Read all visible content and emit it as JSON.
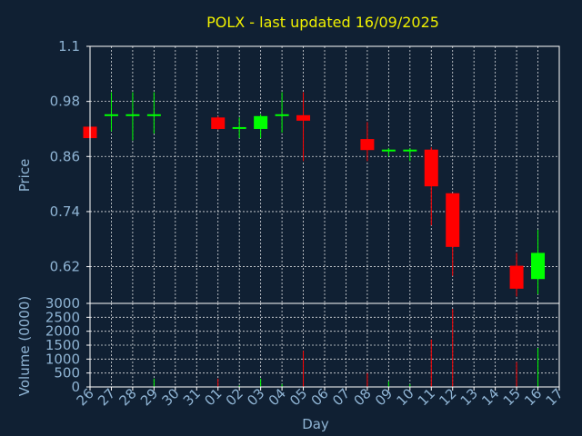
{
  "chart_data": {
    "type": "candlestick",
    "title": "POLX - last updated 16/09/2025",
    "price_axis": {
      "label": "Price",
      "ticks": [
        "1.1",
        "0.98",
        "0.86",
        "0.74",
        "0.62"
      ],
      "tick_values": [
        1.1,
        0.98,
        0.86,
        0.74,
        0.62
      ],
      "range": [
        0.54,
        1.1
      ]
    },
    "volume_axis": {
      "label": "Volume (0000)",
      "ticks": [
        "3000",
        "2500",
        "2000",
        "1500",
        "1000",
        "500",
        "0"
      ],
      "tick_values": [
        3000,
        2500,
        2000,
        1500,
        1000,
        500,
        0
      ],
      "range": [
        0,
        3000
      ]
    },
    "x_axis": {
      "label": "Day",
      "ticks": [
        "26",
        "27",
        "28",
        "29",
        "30",
        "31",
        "01",
        "02",
        "03",
        "04",
        "05",
        "06",
        "07",
        "08",
        "09",
        "10",
        "11",
        "12",
        "13",
        "14",
        "15",
        "16",
        "17"
      ]
    },
    "grid": true,
    "up_color": "#00ff00",
    "down_color": "#ff0000",
    "candles": [
      {
        "day": "26",
        "open": 0.925,
        "high": 0.925,
        "low": 0.9,
        "close": 0.9,
        "volume": 0
      },
      {
        "day": "27",
        "open": 0.95,
        "high": 1.0,
        "low": 0.915,
        "close": 0.952,
        "volume": 0
      },
      {
        "day": "28",
        "open": 0.95,
        "high": 1.0,
        "low": 0.895,
        "close": 0.952,
        "volume": 0
      },
      {
        "day": "29",
        "open": 0.95,
        "high": 1.0,
        "low": 0.91,
        "close": 0.952,
        "volume": 300
      },
      {
        "day": "01",
        "open": 0.945,
        "high": 0.948,
        "low": 0.918,
        "close": 0.92,
        "volume": 300
      },
      {
        "day": "02",
        "open": 0.922,
        "high": 0.945,
        "low": 0.9,
        "close": 0.924,
        "volume": 50
      },
      {
        "day": "03",
        "open": 0.92,
        "high": 0.952,
        "low": 0.9,
        "close": 0.948,
        "volume": 300
      },
      {
        "day": "04",
        "open": 0.95,
        "high": 1.0,
        "low": 0.912,
        "close": 0.952,
        "volume": 100
      },
      {
        "day": "05",
        "open": 0.95,
        "high": 1.0,
        "low": 0.85,
        "close": 0.938,
        "volume": 1300
      },
      {
        "day": "08",
        "open": 0.898,
        "high": 0.935,
        "low": 0.85,
        "close": 0.874,
        "volume": 500
      },
      {
        "day": "09",
        "open": 0.873,
        "high": 0.878,
        "low": 0.86,
        "close": 0.875,
        "volume": 200
      },
      {
        "day": "10",
        "open": 0.873,
        "high": 0.878,
        "low": 0.85,
        "close": 0.875,
        "volume": 100
      },
      {
        "day": "11",
        "open": 0.875,
        "high": 0.88,
        "low": 0.71,
        "close": 0.795,
        "volume": 1700
      },
      {
        "day": "12",
        "open": 0.78,
        "high": 0.78,
        "low": 0.6,
        "close": 0.663,
        "volume": 2800
      },
      {
        "day": "15",
        "open": 0.622,
        "high": 0.65,
        "low": 0.555,
        "close": 0.572,
        "volume": 900
      },
      {
        "day": "16",
        "open": 0.593,
        "high": 0.7,
        "low": 0.56,
        "close": 0.65,
        "volume": 1400
      }
    ]
  }
}
